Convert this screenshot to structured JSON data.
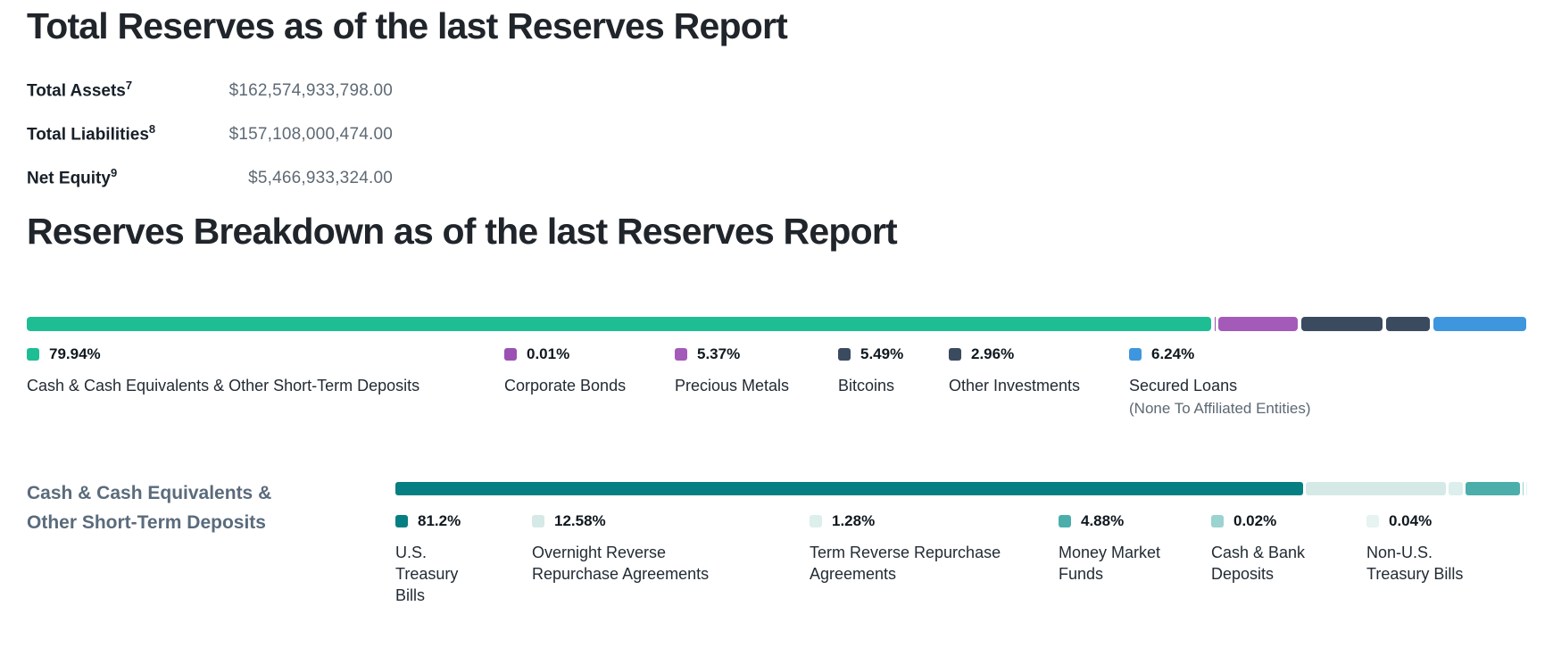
{
  "total_reserves": {
    "title": "Total Reserves as of the last Reserves Report",
    "rows": [
      {
        "label": "Total Assets",
        "footnote": "7",
        "value": "$162,574,933,798.00"
      },
      {
        "label": "Total Liabilities",
        "footnote": "8",
        "value": "$157,108,000,474.00"
      },
      {
        "label": "Net Equity",
        "footnote": "9",
        "value": "$5,466,933,324.00"
      }
    ]
  },
  "reserves_breakdown": {
    "title": "Reserves Breakdown as of the last Reserves Report"
  },
  "cash_section": {
    "label": "Cash & Cash Equivalents & Other Short-Term Deposits"
  },
  "chart_data": [
    {
      "type": "bar",
      "subtype": "stacked-horizontal",
      "title": "Reserves Breakdown as of the last Reserves Report",
      "unit": "%",
      "legend_position": "below",
      "series": [
        {
          "name": "Cash & Cash Equivalents & Other Short-Term Deposits",
          "pct": "79.94%",
          "value": 79.94,
          "color": "#1fbd94",
          "note": ""
        },
        {
          "name": "Corporate Bonds",
          "pct": "0.01%",
          "value": 0.01,
          "color": "#9b50b4",
          "note": ""
        },
        {
          "name": "Precious Metals",
          "pct": "5.37%",
          "value": 5.37,
          "color": "#a45ab8",
          "note": ""
        },
        {
          "name": "Bitcoins",
          "pct": "5.49%",
          "value": 5.49,
          "color": "#3a4a5f",
          "note": ""
        },
        {
          "name": "Other Investments",
          "pct": "2.96%",
          "value": 2.96,
          "color": "#3a4a5f",
          "note": ""
        },
        {
          "name": "Secured Loans",
          "pct": "6.24%",
          "value": 6.24,
          "color": "#3e96de",
          "note": "(None To Affiliated Entities)"
        }
      ]
    },
    {
      "type": "bar",
      "subtype": "stacked-horizontal",
      "title": "Cash & Cash Equivalents & Other Short-Term Deposits",
      "unit": "%",
      "legend_position": "below",
      "series": [
        {
          "name": "U.S. Treasury Bills",
          "pct": "81.2%",
          "value": 81.2,
          "color": "#067f83",
          "note": ""
        },
        {
          "name": "Overnight Reverse Repurchase Agreements",
          "pct": "12.58%",
          "value": 12.58,
          "color": "#d5e9e7",
          "note": ""
        },
        {
          "name": "Term Reverse Repurchase Agreements",
          "pct": "1.28%",
          "value": 1.28,
          "color": "#dcefec",
          "note": ""
        },
        {
          "name": "Money Market Funds",
          "pct": "4.88%",
          "value": 4.88,
          "color": "#4caeaa",
          "note": ""
        },
        {
          "name": "Cash & Bank Deposits",
          "pct": "0.02%",
          "value": 0.02,
          "color": "#9ad3cf",
          "note": ""
        },
        {
          "name": "Non-U.S. Treasury Bills",
          "pct": "0.04%",
          "value": 0.04,
          "color": "#e6f3f1",
          "note": ""
        }
      ]
    }
  ]
}
